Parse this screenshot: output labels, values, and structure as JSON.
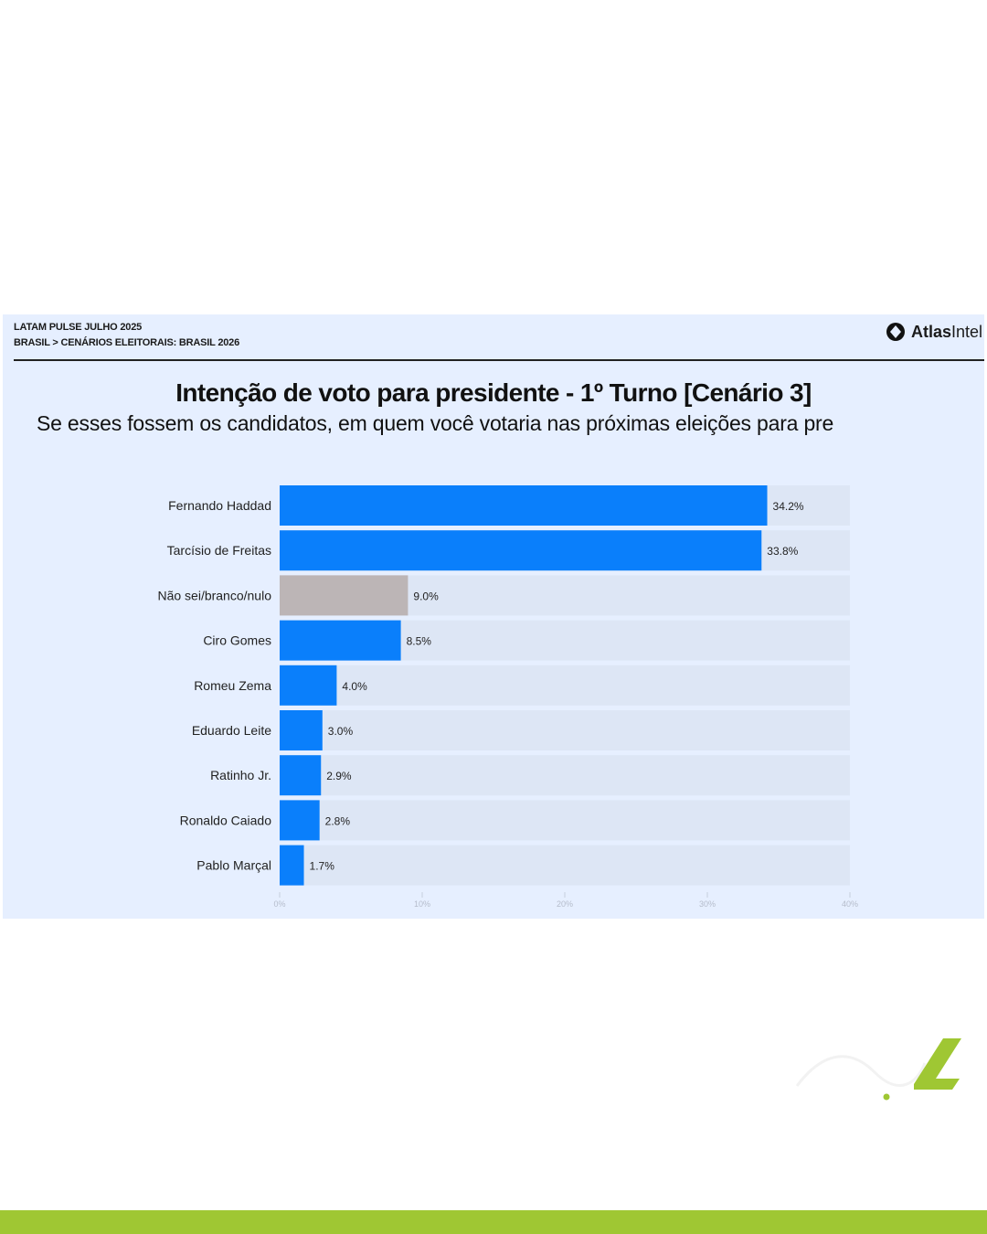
{
  "header": {
    "line1": "LATAM PULSE JULHO 2025",
    "line2": "BRASIL > CENÁRIOS ELEITORAIS: BRASIL 2026"
  },
  "brand": {
    "name_bold": "Atlas",
    "name_rest": "Intel",
    "logo_icon": "atlasintel-logo-icon"
  },
  "colors": {
    "card": "#e6efff",
    "bar": "#0a7ffb",
    "bar_undecided": "#bcb5b6",
    "track": "#dde6f5",
    "footer": "#9fc733"
  },
  "chart_data": {
    "type": "bar",
    "orientation": "horizontal",
    "title": "Intenção de voto para presidente - 1º Turno [Cenário 3]",
    "subtitle": "Se esses fossem os candidatos, em quem você votaria nas próximas eleições para pre",
    "categories": [
      "Fernando Haddad",
      "Tarcísio de Freitas",
      "Não sei/branco/nulo",
      "Ciro Gomes",
      "Romeu Zema",
      "Eduardo Leite",
      "Ratinho Jr.",
      "Ronaldo Caiado",
      "Pablo Marçal"
    ],
    "values": [
      34.2,
      33.8,
      9.0,
      8.5,
      4.0,
      3.0,
      2.9,
      2.8,
      1.7
    ],
    "value_labels": [
      "34.2%",
      "33.8%",
      "9.0%",
      "8.5%",
      "4.0%",
      "3.0%",
      "2.9%",
      "2.8%",
      "1.7%"
    ],
    "xlim": [
      0,
      40
    ],
    "x_ticks": [
      "0%",
      "10%",
      "20%",
      "30%",
      "40%"
    ],
    "x_tick_values": [
      0,
      10,
      20,
      30,
      40
    ],
    "grid": false,
    "legend": "none"
  }
}
